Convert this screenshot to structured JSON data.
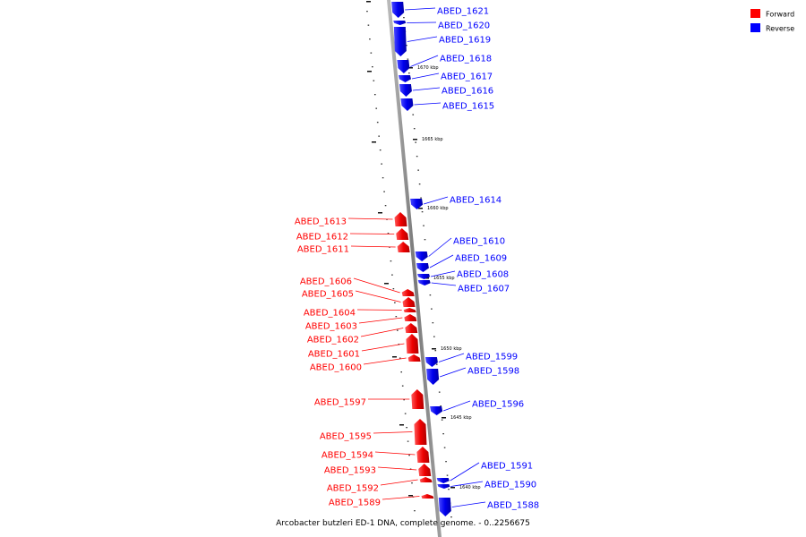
{
  "legend": {
    "forward": {
      "label": "Forward",
      "color": "#ff0000"
    },
    "reverse": {
      "label": "Reverse",
      "color": "#0000ff"
    }
  },
  "caption": "Arcobacter butzleri ED-1 DNA, complete genome. - 0..2256675",
  "axis_labels": [
    "1670 kbp",
    "1665 kbp",
    "1660 kbp",
    "1655 kbp",
    "1650 kbp",
    "1645 kbp",
    "1640 kbp"
  ],
  "genes": {
    "reverse": [
      "ABED_1621",
      "ABED_1620",
      "ABED_1619",
      "ABED_1618",
      "ABED_1617",
      "ABED_1616",
      "ABED_1615",
      "ABED_1614",
      "ABED_1610",
      "ABED_1609",
      "ABED_1608",
      "ABED_1607",
      "ABED_1599",
      "ABED_1598",
      "ABED_1596",
      "ABED_1591",
      "ABED_1590",
      "ABED_1588"
    ],
    "forward": [
      "ABED_1613",
      "ABED_1612",
      "ABED_1611",
      "ABED_1606",
      "ABED_1605",
      "ABED_1604",
      "ABED_1603",
      "ABED_1602",
      "ABED_1601",
      "ABED_1600",
      "ABED_1597",
      "ABED_1595",
      "ABED_1594",
      "ABED_1593",
      "ABED_1592",
      "ABED_1589"
    ]
  },
  "colors": {
    "forward": "#ff0000",
    "reverse": "#0000ff",
    "backbone": "#888888"
  }
}
